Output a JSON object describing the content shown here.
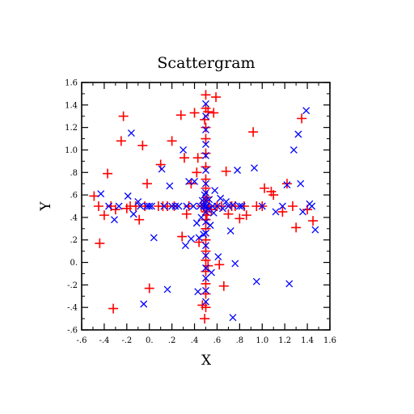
{
  "chart_data": {
    "type": "scatter",
    "title": "Scattergram",
    "xlabel": "X",
    "ylabel": "Y",
    "xlim": [
      -0.6,
      1.6
    ],
    "ylim": [
      -0.6,
      1.6
    ],
    "grid": false,
    "x_ticks": [
      {
        "value": -0.6,
        "label": "-.6"
      },
      {
        "value": -0.4,
        "label": "-.4"
      },
      {
        "value": -0.2,
        "label": "-.2"
      },
      {
        "value": 0.0,
        "label": "0."
      },
      {
        "value": 0.2,
        "label": ".2"
      },
      {
        "value": 0.4,
        "label": ".4"
      },
      {
        "value": 0.6,
        "label": ".6"
      },
      {
        "value": 0.8,
        "label": ".8"
      },
      {
        "value": 1.0,
        "label": "1.0"
      },
      {
        "value": 1.2,
        "label": "1.2"
      },
      {
        "value": 1.4,
        "label": "1.4"
      },
      {
        "value": 1.6,
        "label": "1.6"
      }
    ],
    "y_ticks": [
      {
        "value": -0.6,
        "label": "-.6"
      },
      {
        "value": -0.4,
        "label": "-.4"
      },
      {
        "value": -0.2,
        "label": "-.2"
      },
      {
        "value": 0.0,
        "label": "0."
      },
      {
        "value": 0.2,
        "label": ".2"
      },
      {
        "value": 0.4,
        "label": ".4"
      },
      {
        "value": 0.6,
        "label": ".6"
      },
      {
        "value": 0.8,
        "label": ".8"
      },
      {
        "value": 1.0,
        "label": "1.0"
      },
      {
        "value": 1.2,
        "label": "1.2"
      },
      {
        "value": 1.4,
        "label": "1.4"
      },
      {
        "value": 1.6,
        "label": "1.6"
      }
    ],
    "series": [
      {
        "marker": "plus",
        "color": "#ff0000",
        "points": [
          [
            -0.49,
            0.59
          ],
          [
            -0.45,
            0.5
          ],
          [
            -0.44,
            0.17
          ],
          [
            -0.4,
            0.42
          ],
          [
            -0.37,
            0.79
          ],
          [
            -0.34,
            0.5
          ],
          [
            -0.32,
            -0.41
          ],
          [
            -0.3,
            0.47
          ],
          [
            -0.25,
            1.08
          ],
          [
            -0.23,
            1.3
          ],
          [
            -0.2,
            0.48
          ],
          [
            -0.17,
            0.5
          ],
          [
            -0.12,
            0.5
          ],
          [
            -0.09,
            0.38
          ],
          [
            -0.06,
            1.04
          ],
          [
            -0.04,
            0.5
          ],
          [
            -0.02,
            0.7
          ],
          [
            0.0,
            -0.23
          ],
          [
            0.08,
            0.5
          ],
          [
            0.1,
            0.87
          ],
          [
            0.12,
            0.5
          ],
          [
            0.16,
            0.5
          ],
          [
            0.2,
            1.08
          ],
          [
            0.22,
            0.5
          ],
          [
            0.28,
            1.31
          ],
          [
            0.29,
            0.23
          ],
          [
            0.31,
            0.93
          ],
          [
            0.33,
            0.43
          ],
          [
            0.35,
            0.5
          ],
          [
            0.37,
            0.7
          ],
          [
            0.4,
            1.33
          ],
          [
            0.42,
            0.8
          ],
          [
            0.43,
            0.93
          ],
          [
            0.44,
            0.18
          ],
          [
            0.46,
            0.5
          ],
          [
            0.47,
            -0.38
          ],
          [
            0.48,
            0.5
          ],
          [
            0.49,
            1.27
          ],
          [
            0.49,
            -0.5
          ],
          [
            0.5,
            1.49
          ],
          [
            0.5,
            1.37
          ],
          [
            0.5,
            1.2
          ],
          [
            0.5,
            1.1
          ],
          [
            0.5,
            0.97
          ],
          [
            0.5,
            0.85
          ],
          [
            0.5,
            0.74
          ],
          [
            0.5,
            0.66
          ],
          [
            0.5,
            0.55
          ],
          [
            0.5,
            0.5
          ],
          [
            0.5,
            0.45
          ],
          [
            0.5,
            0.38
          ],
          [
            0.5,
            0.3
          ],
          [
            0.5,
            0.2
          ],
          [
            0.5,
            0.1
          ],
          [
            0.5,
            0.02
          ],
          [
            0.5,
            -0.08
          ],
          [
            0.5,
            -0.19
          ],
          [
            0.5,
            -0.28
          ],
          [
            0.5,
            -0.4
          ],
          [
            0.51,
            0.58
          ],
          [
            0.51,
            0.42
          ],
          [
            0.52,
            1.34
          ],
          [
            0.52,
            -0.03
          ],
          [
            0.53,
            0.5
          ],
          [
            0.55,
            0.47
          ],
          [
            0.57,
            1.33
          ],
          [
            0.59,
            1.47
          ],
          [
            0.6,
            0.5
          ],
          [
            0.62,
            -0.02
          ],
          [
            0.64,
            0.5
          ],
          [
            0.66,
            -0.21
          ],
          [
            0.68,
            0.81
          ],
          [
            0.7,
            0.43
          ],
          [
            0.73,
            0.5
          ],
          [
            0.76,
            0.5
          ],
          [
            0.8,
            0.39
          ],
          [
            0.84,
            0.5
          ],
          [
            0.86,
            0.42
          ],
          [
            0.92,
            1.16
          ],
          [
            0.95,
            0.5
          ],
          [
            1.0,
            0.5
          ],
          [
            1.02,
            0.66
          ],
          [
            1.08,
            0.63
          ],
          [
            1.1,
            0.6
          ],
          [
            1.18,
            0.45
          ],
          [
            1.22,
            0.7
          ],
          [
            1.27,
            0.5
          ],
          [
            1.3,
            0.31
          ],
          [
            1.35,
            1.28
          ],
          [
            1.4,
            0.47
          ],
          [
            1.45,
            0.37
          ]
        ]
      },
      {
        "marker": "cross",
        "color": "#0000ff",
        "points": [
          [
            -0.43,
            0.61
          ],
          [
            -0.36,
            0.5
          ],
          [
            -0.31,
            0.38
          ],
          [
            -0.27,
            0.5
          ],
          [
            -0.19,
            0.59
          ],
          [
            -0.16,
            1.15
          ],
          [
            -0.14,
            0.43
          ],
          [
            -0.1,
            0.54
          ],
          [
            -0.08,
            0.5
          ],
          [
            -0.05,
            -0.37
          ],
          [
            -0.02,
            0.5
          ],
          [
            0.0,
            0.5
          ],
          [
            0.02,
            0.5
          ],
          [
            0.04,
            0.22
          ],
          [
            0.11,
            0.83
          ],
          [
            0.13,
            0.5
          ],
          [
            0.16,
            -0.24
          ],
          [
            0.18,
            0.68
          ],
          [
            0.2,
            0.5
          ],
          [
            0.23,
            0.5
          ],
          [
            0.26,
            0.5
          ],
          [
            0.3,
            1.0
          ],
          [
            0.32,
            0.15
          ],
          [
            0.33,
            0.5
          ],
          [
            0.35,
            0.72
          ],
          [
            0.37,
            0.21
          ],
          [
            0.39,
            0.5
          ],
          [
            0.4,
            0.72
          ],
          [
            0.42,
            0.35
          ],
          [
            0.43,
            -0.26
          ],
          [
            0.44,
            0.22
          ],
          [
            0.45,
            0.5
          ],
          [
            0.46,
            0.4
          ],
          [
            0.47,
            0.55
          ],
          [
            0.48,
            0.5
          ],
          [
            0.48,
            0.25
          ],
          [
            0.49,
            0.6
          ],
          [
            0.5,
            1.41
          ],
          [
            0.5,
            1.3
          ],
          [
            0.5,
            1.18
          ],
          [
            0.5,
            1.05
          ],
          [
            0.5,
            0.95
          ],
          [
            0.5,
            0.82
          ],
          [
            0.5,
            0.7
          ],
          [
            0.5,
            0.62
          ],
          [
            0.5,
            0.55
          ],
          [
            0.5,
            0.5
          ],
          [
            0.5,
            0.45
          ],
          [
            0.5,
            0.36
          ],
          [
            0.5,
            0.26
          ],
          [
            0.5,
            0.15
          ],
          [
            0.5,
            0.06
          ],
          [
            0.5,
            -0.05
          ],
          [
            0.5,
            -0.14
          ],
          [
            0.5,
            -0.25
          ],
          [
            0.5,
            -0.35
          ],
          [
            0.51,
            0.5
          ],
          [
            0.52,
            0.47
          ],
          [
            0.53,
            0.56
          ],
          [
            0.54,
            0.33
          ],
          [
            0.55,
            -0.09
          ],
          [
            0.56,
            0.5
          ],
          [
            0.57,
            0.44
          ],
          [
            0.58,
            0.64
          ],
          [
            0.6,
            0.5
          ],
          [
            0.61,
            0.05
          ],
          [
            0.63,
            0.57
          ],
          [
            0.65,
            0.48
          ],
          [
            0.68,
            0.54
          ],
          [
            0.7,
            0.5
          ],
          [
            0.72,
            0.28
          ],
          [
            0.74,
            0.51
          ],
          [
            0.74,
            -0.49
          ],
          [
            0.76,
            -0.01
          ],
          [
            0.78,
            0.82
          ],
          [
            0.8,
            0.5
          ],
          [
            0.82,
            0.5
          ],
          [
            0.93,
            0.84
          ],
          [
            0.95,
            -0.17
          ],
          [
            1.0,
            0.5
          ],
          [
            1.12,
            0.45
          ],
          [
            1.18,
            0.5
          ],
          [
            1.22,
            0.69
          ],
          [
            1.24,
            -0.19
          ],
          [
            1.28,
            1.0
          ],
          [
            1.32,
            1.14
          ],
          [
            1.34,
            0.7
          ],
          [
            1.36,
            0.45
          ],
          [
            1.39,
            1.35
          ],
          [
            1.42,
            0.52
          ],
          [
            1.44,
            0.5
          ],
          [
            1.47,
            0.29
          ]
        ]
      }
    ]
  }
}
